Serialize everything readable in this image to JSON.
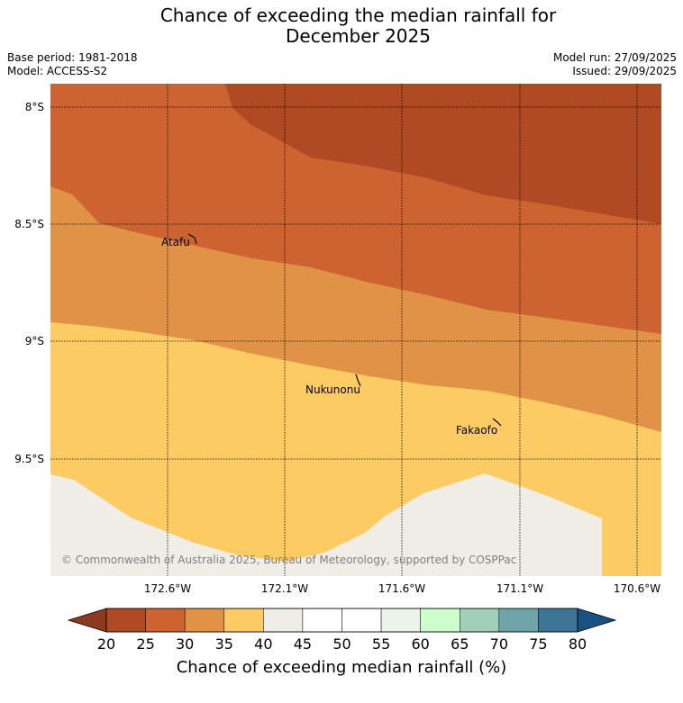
{
  "title": {
    "line1": "Chance of exceeding the median rainfall for",
    "line2": "December 2025"
  },
  "meta": {
    "base_period": "Base period: 1981-2018",
    "model": "Model: ACCESS-S2",
    "model_run": "Model run: 27/09/2025",
    "issued": "Issued: 29/09/2025"
  },
  "map": {
    "lat_labels": [
      "8°S",
      "8.5°S",
      "9°S",
      "9.5°S"
    ],
    "lon_labels": [
      "172.6°W",
      "172.1°W",
      "171.6°W",
      "171.1°W",
      "170.6°W"
    ],
    "places": [
      "Atafu",
      "Nukunonu",
      "Fakaofo"
    ],
    "copyright": "© Commonwealth of Australia 2025, Bureau of Meteorology, supported by COSPPac"
  },
  "colorbar": {
    "ticks": [
      "20",
      "25",
      "30",
      "35",
      "40",
      "45",
      "50",
      "55",
      "60",
      "65",
      "70",
      "75",
      "80"
    ],
    "colors": {
      "under": "#8b3a1f",
      "c20": "#b04a24",
      "c25": "#cc6330",
      "c30": "#e09346",
      "c35": "#fdcb63",
      "c40": "#f0ece6",
      "c45": "#ffffff",
      "c50": "#ffffff",
      "c55": "#eaf5e8",
      "c60": "#ccfecc",
      "c65": "#a1d0b9",
      "c70": "#6fa5a8",
      "c75": "#3e7495",
      "over": "#1a5286"
    },
    "label": "Chance of exceeding median rainfall (%)"
  }
}
